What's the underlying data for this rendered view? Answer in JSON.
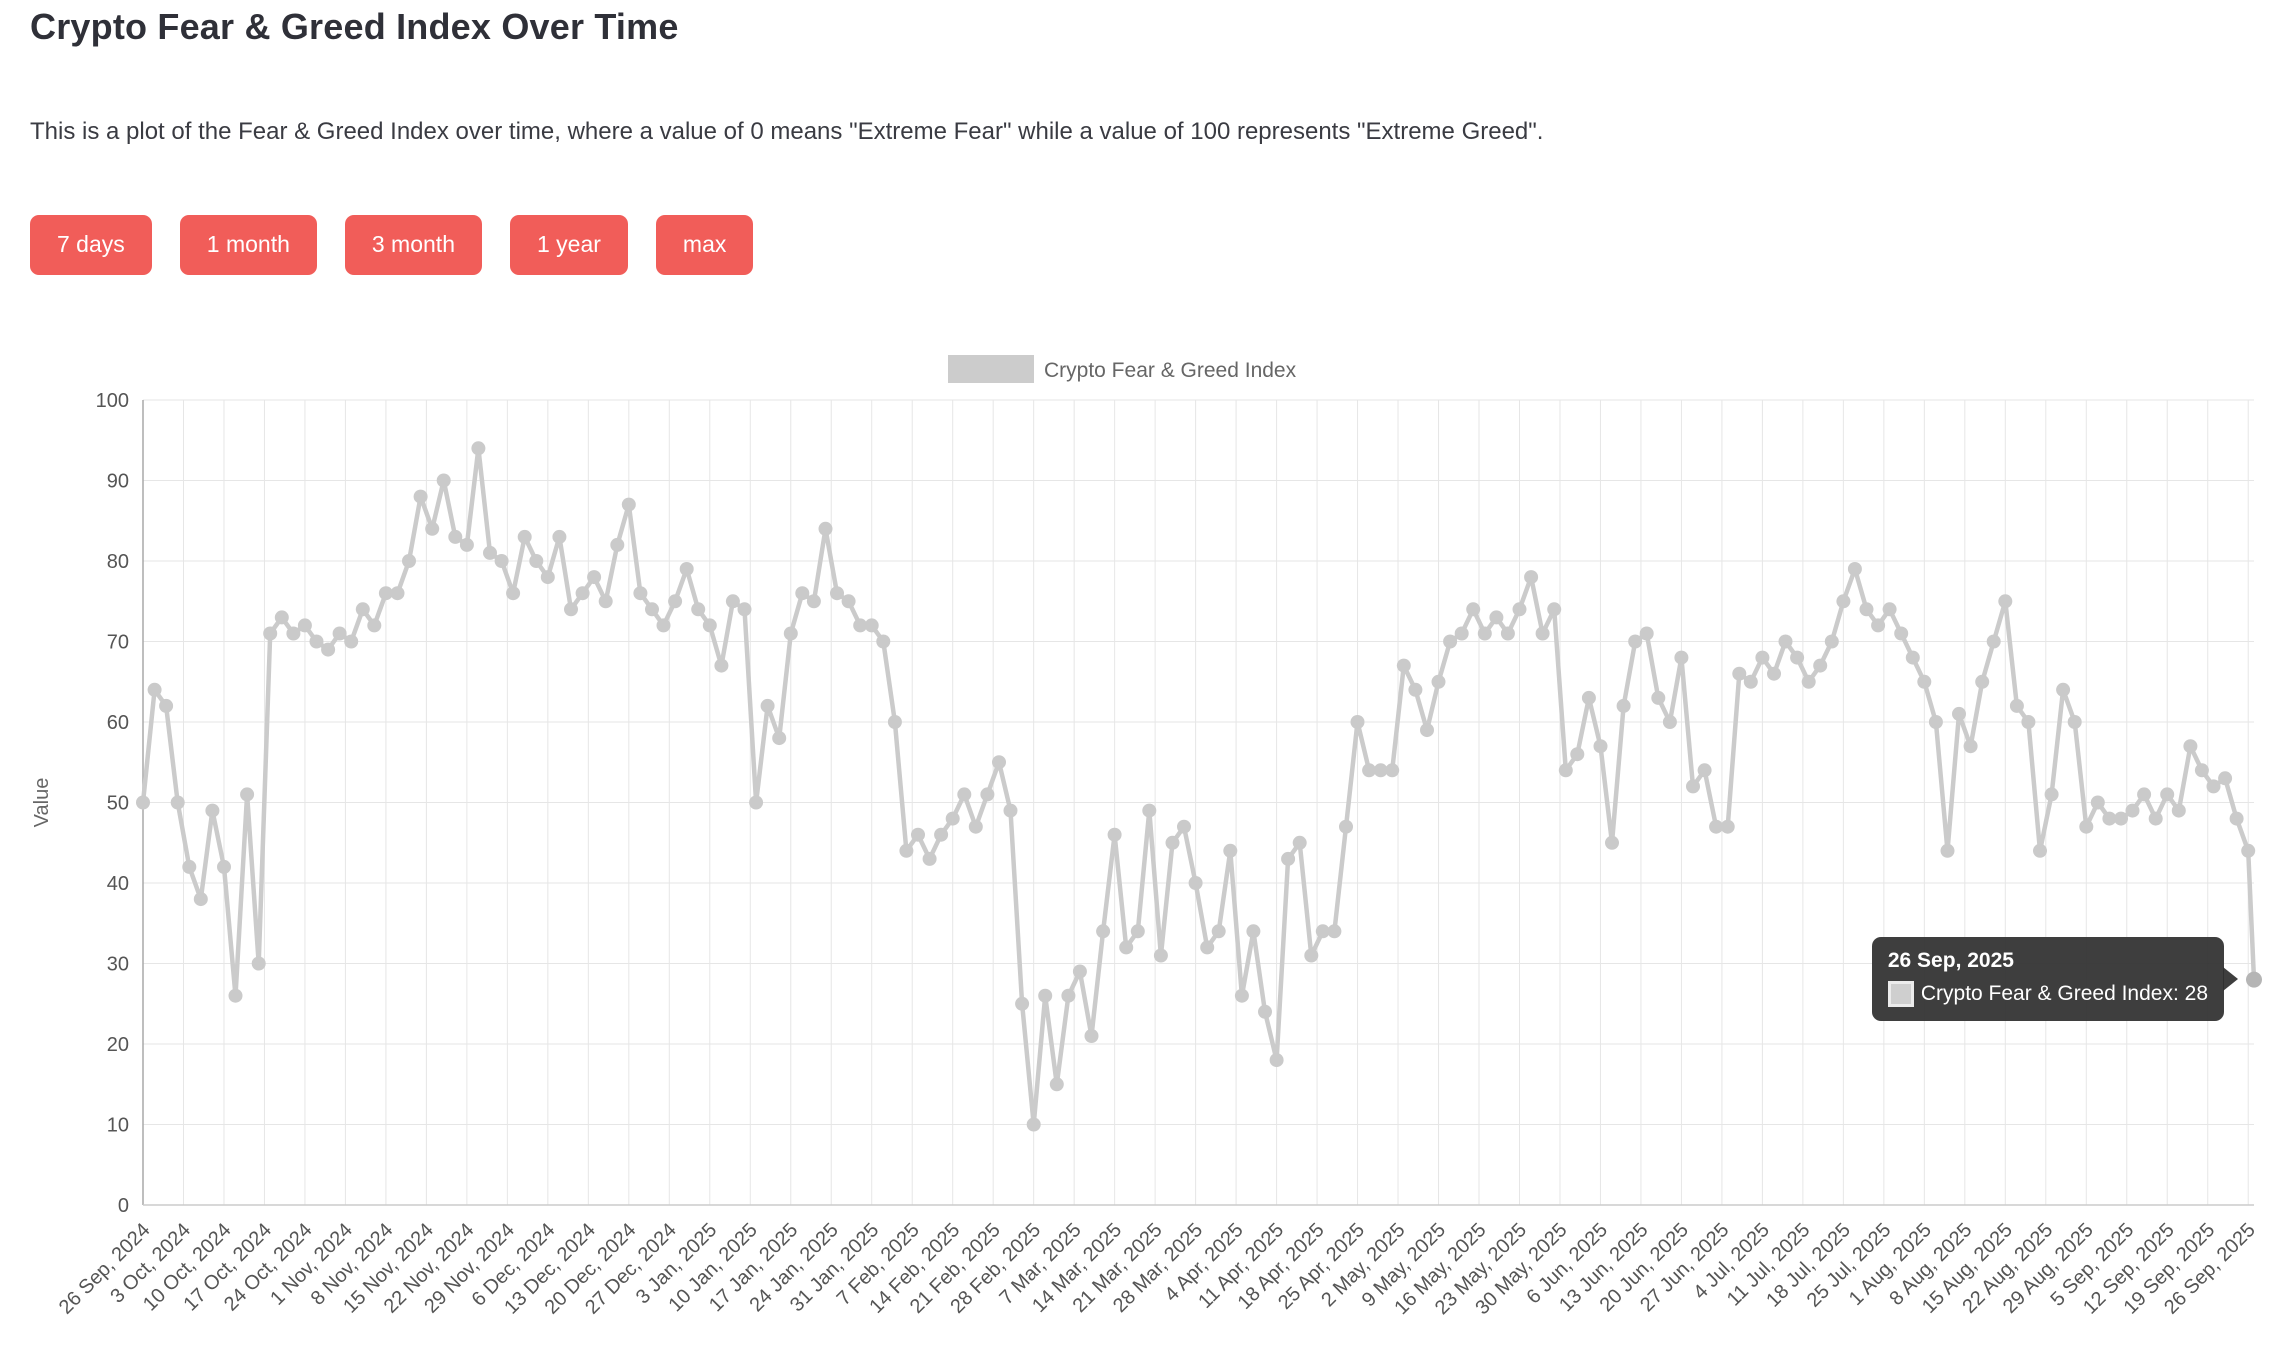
{
  "page": {
    "title": "Crypto Fear & Greed Index Over Time",
    "subtitle": "This is a plot of the Fear & Greed Index over time, where a value of 0 means \"Extreme Fear\" while a value of 100 represents \"Extreme Greed\"."
  },
  "range_buttons": [
    {
      "label": "7 days"
    },
    {
      "label": "1 month"
    },
    {
      "label": "3 month"
    },
    {
      "label": "1 year"
    },
    {
      "label": "max"
    }
  ],
  "colors": {
    "accent": "#f15d59",
    "series": "#cbcbcb",
    "marker": "#cacaca",
    "last_marker": "#b5b5b5",
    "grid": "#e6e6e6",
    "axis_line": "#a8a8a8",
    "tick_label": "#555555",
    "axis_title": "#666666",
    "legend_text": "#666666",
    "legend_swatch": "#cccccc"
  },
  "legend": {
    "label": "Crypto Fear & Greed Index"
  },
  "tooltip": {
    "date": "26 Sep, 2025",
    "series_label": "Crypto Fear & Greed Index",
    "value": 28,
    "text": "Crypto Fear & Greed Index: 28"
  },
  "chart_data": {
    "type": "line",
    "title": "",
    "xlabel": "",
    "ylabel": "Value",
    "ylim": [
      0,
      100
    ],
    "y_tick_step": 10,
    "grid": true,
    "legend_position": "top-center",
    "start_date": "26 Sep, 2024",
    "end_date": "26 Sep, 2025",
    "total_days": 365,
    "sample_interval_days": 2,
    "x_tick_labels": [
      "26 Sep, 2024",
      "3 Oct, 2024",
      "10 Oct, 2024",
      "17 Oct, 2024",
      "24 Oct, 2024",
      "1 Nov, 2024",
      "8 Nov, 2024",
      "15 Nov, 2024",
      "22 Nov, 2024",
      "29 Nov, 2024",
      "6 Dec, 2024",
      "13 Dec, 2024",
      "20 Dec, 2024",
      "27 Dec, 2024",
      "3 Jan, 2025",
      "10 Jan, 2025",
      "17 Jan, 2025",
      "24 Jan, 2025",
      "31 Jan, 2025",
      "7 Feb, 2025",
      "14 Feb, 2025",
      "21 Feb, 2025",
      "28 Feb, 2025",
      "7 Mar, 2025",
      "14 Mar, 2025",
      "21 Mar, 2025",
      "28 Mar, 2025",
      "4 Apr, 2025",
      "11 Apr, 2025",
      "18 Apr, 2025",
      "25 Apr, 2025",
      "2 May, 2025",
      "9 May, 2025",
      "16 May, 2025",
      "23 May, 2025",
      "30 May, 2025",
      "6 Jun, 2025",
      "13 Jun, 2025",
      "20 Jun, 2025",
      "27 Jun, 2025",
      "4 Jul, 2025",
      "11 Jul, 2025",
      "18 Jul, 2025",
      "25 Jul, 2025",
      "1 Aug, 2025",
      "8 Aug, 2025",
      "15 Aug, 2025",
      "22 Aug, 2025",
      "29 Aug, 2025",
      "5 Sep, 2025",
      "12 Sep, 2025",
      "19 Sep, 2025",
      "26 Sep, 2025"
    ],
    "series": [
      {
        "name": "Crypto Fear & Greed Index",
        "color": "#cbcbcb",
        "values": [
          50,
          64,
          62,
          50,
          42,
          38,
          49,
          42,
          26,
          51,
          30,
          71,
          73,
          71,
          72,
          70,
          69,
          71,
          70,
          74,
          72,
          76,
          76,
          80,
          88,
          84,
          90,
          83,
          82,
          94,
          81,
          80,
          76,
          83,
          80,
          78,
          83,
          74,
          76,
          78,
          75,
          82,
          87,
          76,
          74,
          72,
          75,
          79,
          74,
          72,
          67,
          75,
          74,
          50,
          62,
          58,
          71,
          76,
          75,
          84,
          76,
          75,
          72,
          72,
          70,
          60,
          44,
          46,
          43,
          46,
          48,
          51,
          47,
          51,
          55,
          49,
          25,
          10,
          26,
          15,
          26,
          29,
          21,
          34,
          46,
          32,
          34,
          49,
          31,
          45,
          47,
          40,
          32,
          34,
          44,
          26,
          34,
          24,
          18,
          43,
          45,
          31,
          34,
          34,
          47,
          60,
          54,
          54,
          54,
          67,
          64,
          59,
          65,
          70,
          71,
          74,
          71,
          73,
          71,
          74,
          78,
          71,
          74,
          54,
          56,
          63,
          57,
          45,
          62,
          70,
          71,
          63,
          60,
          68,
          52,
          54,
          47,
          47,
          66,
          65,
          68,
          66,
          70,
          68,
          65,
          67,
          70,
          75,
          79,
          74,
          72,
          74,
          71,
          68,
          65,
          60,
          44,
          61,
          57,
          65,
          70,
          75,
          62,
          60,
          44,
          51,
          64,
          60,
          47,
          50,
          48,
          48,
          49,
          51,
          48,
          51,
          49,
          57,
          54,
          52,
          53,
          48,
          44,
          28
        ]
      }
    ],
    "last_point": {
      "date": "26 Sep, 2025",
      "value": 28
    }
  }
}
